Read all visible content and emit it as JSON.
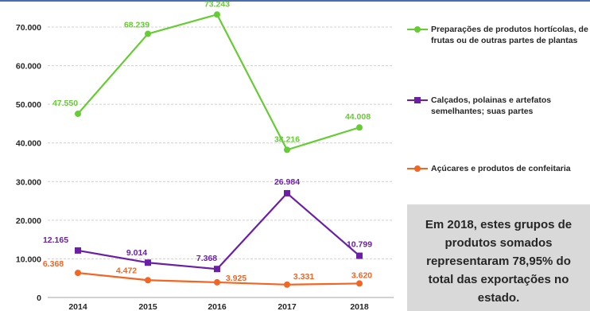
{
  "chart_data": {
    "type": "line",
    "categories": [
      "2014",
      "2015",
      "2016",
      "2017",
      "2018"
    ],
    "ylim": [
      0,
      70000
    ],
    "yticks": [
      "0",
      "10.000",
      "20.000",
      "30.000",
      "40.000",
      "50.000",
      "60.000",
      "70.000"
    ],
    "grid": true,
    "legend_placement": "right",
    "series": [
      {
        "name": "Preparações de produtos hortícolas, de frutas ou de outras partes de plantas",
        "color": "#66cc33",
        "marker": "circle",
        "values": [
          47550,
          68239,
          73243,
          38216,
          44008
        ],
        "labels": [
          "47.550",
          "68.239",
          "73.243",
          "38.216",
          "44.008"
        ]
      },
      {
        "name": "Calçados, polainas e artefatos semelhantes; suas partes",
        "color": "#6b1fa8",
        "marker": "square",
        "values": [
          12165,
          9014,
          7368,
          26984,
          10799
        ],
        "labels": [
          "12.165",
          "9.014",
          "7.368",
          "26.984",
          "10.799"
        ]
      },
      {
        "name": "Açúcares e produtos de confeitaria",
        "color": "#f26522",
        "marker": "circle",
        "values": [
          6368,
          4472,
          3925,
          3331,
          3620
        ],
        "labels": [
          "6.368",
          "4.472",
          "3.925",
          "3.331",
          "3.620"
        ]
      }
    ]
  },
  "legend": {
    "item0": "Preparações de produtos hortícolas, de frutas ou de outras partes de plantas",
    "item1": "Calçados, polainas e artefatos semelhantes; suas partes",
    "item2": "Açúcares e produtos de confeitaria"
  },
  "callout": {
    "text": "Em 2018, estes grupos de produtos somados representaram 78,95% do total das exportações no estado."
  }
}
